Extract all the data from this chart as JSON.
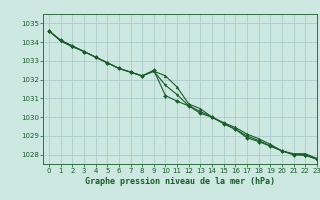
{
  "title": "Graphe pression niveau de la mer (hPa)",
  "background_color": "#cce8e0",
  "grid_color": "#aacccc",
  "line_color": "#1a5c2a",
  "xlim": [
    -0.5,
    23
  ],
  "ylim": [
    1027.5,
    1035.5
  ],
  "yticks": [
    1028,
    1029,
    1030,
    1031,
    1032,
    1033,
    1034,
    1035
  ],
  "xticks": [
    0,
    1,
    2,
    3,
    4,
    5,
    6,
    7,
    8,
    9,
    10,
    11,
    12,
    13,
    14,
    15,
    16,
    17,
    18,
    19,
    20,
    21,
    22,
    23
  ],
  "series": [
    {
      "x": [
        0,
        1,
        2,
        3,
        4,
        5,
        6,
        7,
        8,
        9,
        10,
        11,
        12,
        13,
        14,
        15,
        16,
        17,
        18,
        19,
        20,
        21,
        22,
        23
      ],
      "y": [
        1034.6,
        1034.1,
        1033.8,
        1033.5,
        1033.2,
        1032.9,
        1032.6,
        1032.4,
        1032.2,
        1032.45,
        1032.2,
        1031.6,
        1030.7,
        1030.45,
        1030.0,
        1029.7,
        1029.45,
        1029.1,
        1028.85,
        1028.55,
        1028.2,
        1028.05,
        1028.05,
        1027.8
      ]
    },
    {
      "x": [
        0,
        1,
        2,
        3,
        4,
        5,
        6,
        7,
        8,
        9,
        10,
        11,
        12,
        13,
        14,
        15,
        16,
        17,
        18,
        19,
        20,
        21,
        22,
        23
      ],
      "y": [
        1034.6,
        1034.1,
        1033.8,
        1033.5,
        1033.2,
        1032.9,
        1032.6,
        1032.4,
        1032.2,
        1032.5,
        1031.15,
        1030.85,
        1030.6,
        1030.2,
        1030.0,
        1029.65,
        1029.35,
        1028.9,
        1028.7,
        1028.45,
        1028.2,
        1028.0,
        1028.0,
        1027.75
      ]
    },
    {
      "x": [
        0,
        1,
        2,
        3,
        4,
        5,
        6,
        7,
        8,
        9,
        10,
        11,
        12,
        13,
        14,
        15,
        16,
        17,
        18,
        19,
        20,
        21,
        22,
        23
      ],
      "y": [
        1034.6,
        1034.05,
        1033.75,
        1033.5,
        1033.2,
        1032.9,
        1032.6,
        1032.4,
        1032.2,
        1032.45,
        1031.7,
        1031.2,
        1030.6,
        1030.3,
        1030.0,
        1029.67,
        1029.35,
        1029.0,
        1028.75,
        1028.47,
        1028.2,
        1028.0,
        1027.95,
        1027.77
      ]
    }
  ]
}
